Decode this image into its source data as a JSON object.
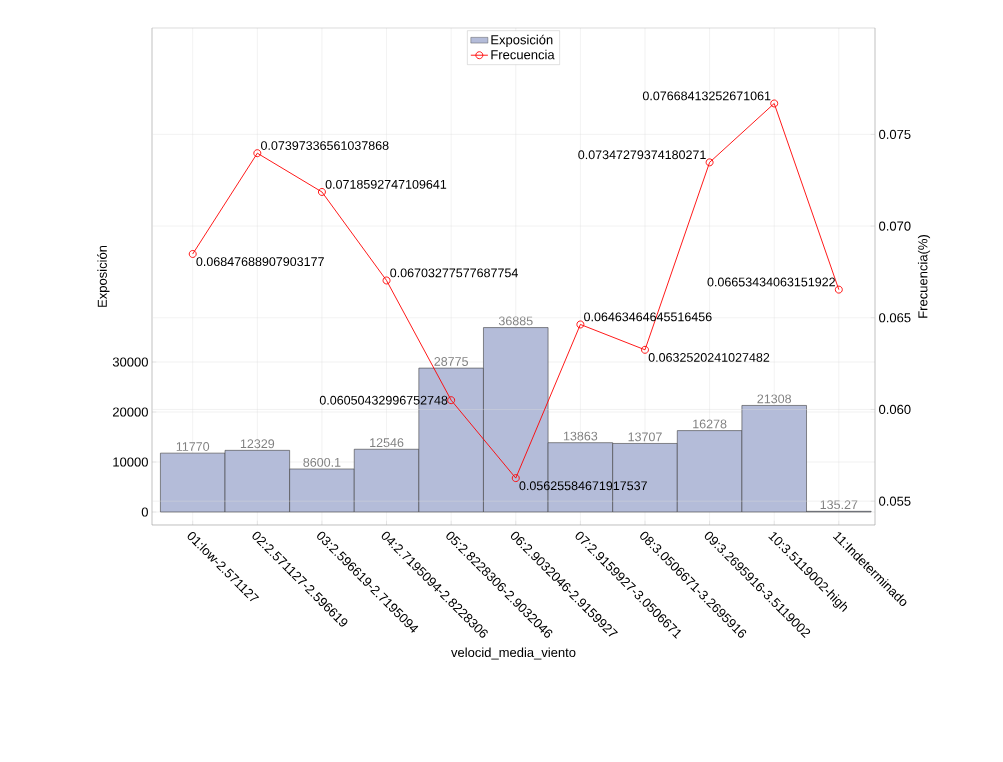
{
  "chart_data": {
    "type": "bar",
    "xlabel": "velocid_media_viento",
    "ylabel": "Exposición",
    "y2label": "Frecuencia(%)",
    "categories": [
      "01:low-2.571127",
      "02:2.571127-2.596619",
      "03:2.596619-2.7195094",
      "04:2.7195094-2.8228306",
      "05:2.8228306-2.9032046",
      "06:2.9032046-2.9159927",
      "07:2.9159927-3.0506671",
      "08:3.0506671-3.2695916",
      "09:3.2695916-3.5119002",
      "10:3.5119002-high",
      "11:Indeterminado"
    ],
    "series": [
      {
        "name": "Exposición",
        "color": "#b4bcd9",
        "values": [
          11770,
          12329,
          8600.1,
          12546,
          28775,
          36885,
          13863,
          13707,
          16278,
          21308,
          135.27
        ]
      },
      {
        "name": "Frecuencia",
        "type": "line",
        "axis": "y2",
        "color": "#ff0000",
        "marker": "circle",
        "values": [
          0.06847688907903177,
          0.07397336561037868,
          0.0718592747109641,
          0.06703277577687754,
          0.06050432996752748,
          0.05625584671917537,
          0.06463464645516456,
          0.0632520241027482,
          0.07347279374180271,
          0.07668413252671061,
          0.06653434063151922
        ]
      }
    ],
    "ylim": [
      -2600,
      96800
    ],
    "yticks": [
      0,
      10000,
      20000,
      30000
    ],
    "y2lim": [
      0.0537,
      0.0808
    ],
    "y2ticks": [
      0.055,
      {
        "value": 0.06,
        "label": "0.060"
      },
      0.065,
      {
        "value": 0.07,
        "label": "0.070"
      },
      0.075
    ],
    "grid": true,
    "legend": "top",
    "data_labels": true
  }
}
